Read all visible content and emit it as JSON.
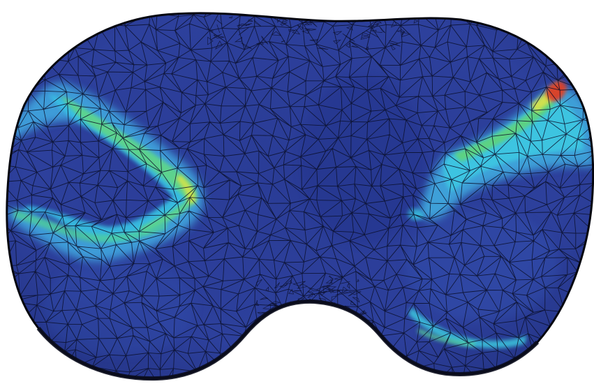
{
  "figure": {
    "subject": "finite-element-stress-contour",
    "colors": {
      "background": "#ffffff",
      "base_blue": "#2c3f9a",
      "deep_blue": "#22308a",
      "light_blue": "#3f7fd0",
      "cyan": "#37c6e6",
      "green": "#4ed27a",
      "yellow": "#d9e84b",
      "red": "#d83b2a",
      "mesh_line": "#0b0f2a",
      "outline": "#05060f"
    }
  }
}
